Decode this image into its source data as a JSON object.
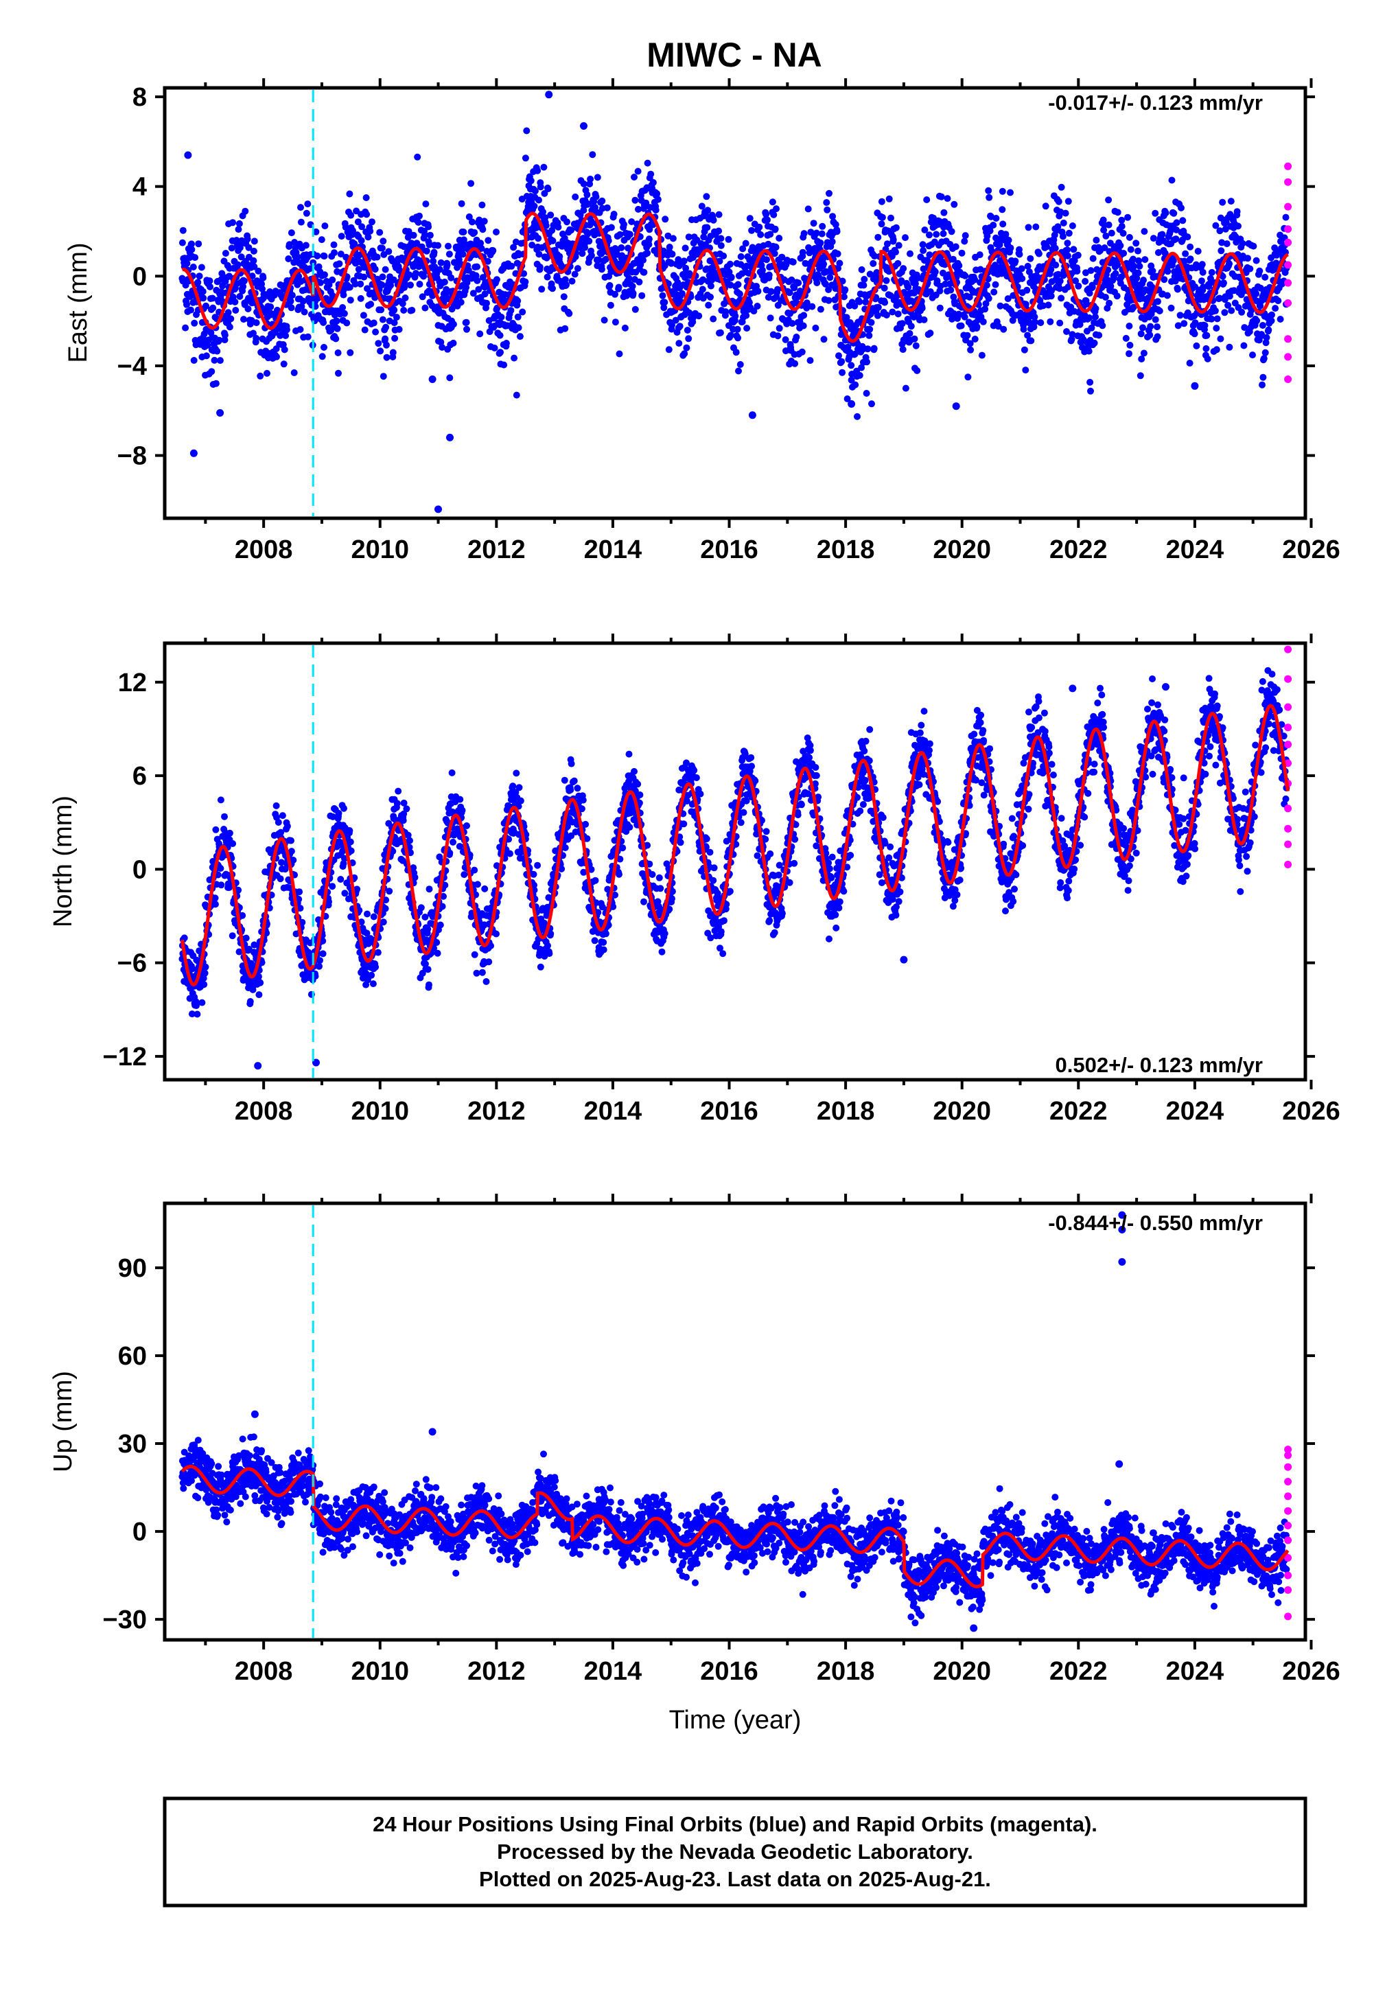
{
  "title": "MIWC - NA",
  "chart_data": [
    {
      "type": "scatter",
      "ylabel": "East (mm)",
      "rate": "-0.017+/- 0.123 mm/yr",
      "rate_position": "top-right",
      "xlim": [
        2006.3,
        2025.9
      ],
      "ylim": [
        -10.8,
        8.4
      ],
      "yticks": [
        8,
        4,
        0,
        -4,
        -8
      ],
      "ytick_labels": [
        "8",
        "4",
        "0",
        "−4",
        "−8"
      ],
      "xticks": [
        2008,
        2010,
        2012,
        2014,
        2016,
        2018,
        2020,
        2022,
        2024,
        2026
      ],
      "xtick_labels": [
        "2008",
        "2010",
        "2012",
        "2014",
        "2016",
        "2018",
        "2020",
        "2022",
        "2024",
        "2026"
      ],
      "event_line_x": 2008.85,
      "series": [
        {
          "color": "#0000ff",
          "kind": "points",
          "style": "scatter"
        },
        {
          "color": "#ff00ff",
          "kind": "points",
          "style": "scatter"
        },
        {
          "color": "#ff0000",
          "kind": "model",
          "style": "line"
        }
      ],
      "trend": {
        "t0": 2006.6,
        "y0": 0.0,
        "slope": -0.017,
        "annual_amp": 1.3,
        "annual_phase": 2007.62,
        "noise": 1.25
      },
      "segments": [
        [
          2006.6,
          2008.85,
          -1.0
        ],
        [
          2012.5,
          2014.8,
          1.6
        ],
        [
          2017.9,
          2018.6,
          -1.4
        ]
      ],
      "outliers": [
        [
          2006.7,
          5.4
        ],
        [
          2006.8,
          -7.9
        ],
        [
          2007.25,
          -6.1
        ],
        [
          2010.9,
          -4.6
        ],
        [
          2011.0,
          -10.4
        ],
        [
          2011.2,
          -7.2
        ],
        [
          2012.9,
          8.1
        ],
        [
          2013.5,
          6.7
        ],
        [
          2016.4,
          -6.2
        ],
        [
          2018.1,
          -5.7
        ],
        [
          2019.9,
          -5.8
        ],
        [
          2024.0,
          -4.9
        ]
      ],
      "rapid_x": 2025.6,
      "rapid_values": [
        4.9,
        4.2,
        3.1,
        2.1,
        1.5,
        0.5,
        -0.3,
        -1.2,
        -2.8,
        -3.6,
        -4.6
      ]
    },
    {
      "type": "scatter",
      "ylabel": "North (mm)",
      "rate": "0.502+/- 0.123 mm/yr",
      "rate_position": "bottom-right",
      "xlim": [
        2006.3,
        2025.9
      ],
      "ylim": [
        -13.5,
        14.5
      ],
      "yticks": [
        12,
        6,
        0,
        -6,
        -12
      ],
      "ytick_labels": [
        "12",
        "6",
        "0",
        "−6",
        "−12"
      ],
      "xticks": [
        2008,
        2010,
        2012,
        2014,
        2016,
        2018,
        2020,
        2022,
        2024,
        2026
      ],
      "xtick_labels": [
        "2008",
        "2010",
        "2012",
        "2014",
        "2016",
        "2018",
        "2020",
        "2022",
        "2024",
        "2026"
      ],
      "event_line_x": 2008.85,
      "series": [
        {
          "color": "#0000ff",
          "kind": "points",
          "style": "scatter"
        },
        {
          "color": "#ff00ff",
          "kind": "points",
          "style": "scatter"
        },
        {
          "color": "#ff0000",
          "kind": "model",
          "style": "line"
        }
      ],
      "trend": {
        "t0": 2006.6,
        "y0": -3.2,
        "slope": 0.502,
        "annual_amp": 4.3,
        "annual_phase": 2007.3,
        "noise": 1.1
      },
      "segments": [],
      "outliers": [
        [
          2007.9,
          -12.6
        ],
        [
          2008.9,
          -12.4
        ],
        [
          2021.9,
          11.6
        ],
        [
          2023.5,
          11.7
        ],
        [
          2019.0,
          -5.8
        ]
      ],
      "rapid_x": 2025.6,
      "rapid_values": [
        14.1,
        12.2,
        10.4,
        9.1,
        8.0,
        6.8,
        5.5,
        3.9,
        2.6,
        1.6,
        0.3
      ]
    },
    {
      "type": "scatter",
      "ylabel": "Up (mm)",
      "xlabel": "Time (year)",
      "rate": "-0.844+/- 0.550 mm/yr",
      "rate_position": "top-right",
      "xlim": [
        2006.3,
        2025.9
      ],
      "ylim": [
        -37,
        112
      ],
      "yticks": [
        90,
        60,
        30,
        0,
        -30
      ],
      "ytick_labels": [
        "90",
        "60",
        "30",
        "0",
        "−30"
      ],
      "xticks": [
        2008,
        2010,
        2012,
        2014,
        2016,
        2018,
        2020,
        2022,
        2024,
        2026
      ],
      "xtick_labels": [
        "2008",
        "2010",
        "2012",
        "2014",
        "2016",
        "2018",
        "2020",
        "2022",
        "2024",
        "2026"
      ],
      "event_line_x": 2008.85,
      "series": [
        {
          "color": "#0000ff",
          "kind": "points",
          "style": "scatter"
        },
        {
          "color": "#ff00ff",
          "kind": "points",
          "style": "scatter"
        },
        {
          "color": "#ff0000",
          "kind": "model",
          "style": "line"
        }
      ],
      "trend": {
        "t0": 2006.6,
        "y0": 7.0,
        "slope": -0.844,
        "annual_amp": 4.3,
        "annual_phase": 2007.75,
        "noise": 4.5
      },
      "segments": [
        [
          2006.6,
          2008.85,
          11.0
        ],
        [
          2012.7,
          2013.3,
          7.0
        ],
        [
          2019.0,
          2020.35,
          -10.0
        ]
      ],
      "outliers": [
        [
          2022.75,
          103
        ],
        [
          2022.75,
          108
        ],
        [
          2022.75,
          92
        ],
        [
          2010.9,
          34
        ],
        [
          2007.85,
          40
        ],
        [
          2022.7,
          23
        ],
        [
          2020.2,
          -33
        ]
      ],
      "rapid_x": 2025.6,
      "rapid_values": [
        28,
        26,
        22,
        17,
        12,
        7,
        2,
        -3,
        -9,
        -15,
        -20,
        -29
      ]
    }
  ],
  "footer": {
    "line1": "24 Hour Positions Using Final Orbits (blue) and Rapid Orbits (magenta).",
    "line2": "Processed by the Nevada Geodetic Laboratory.",
    "line3": "Plotted on 2025-Aug-23. Last data on 2025-Aug-21."
  }
}
